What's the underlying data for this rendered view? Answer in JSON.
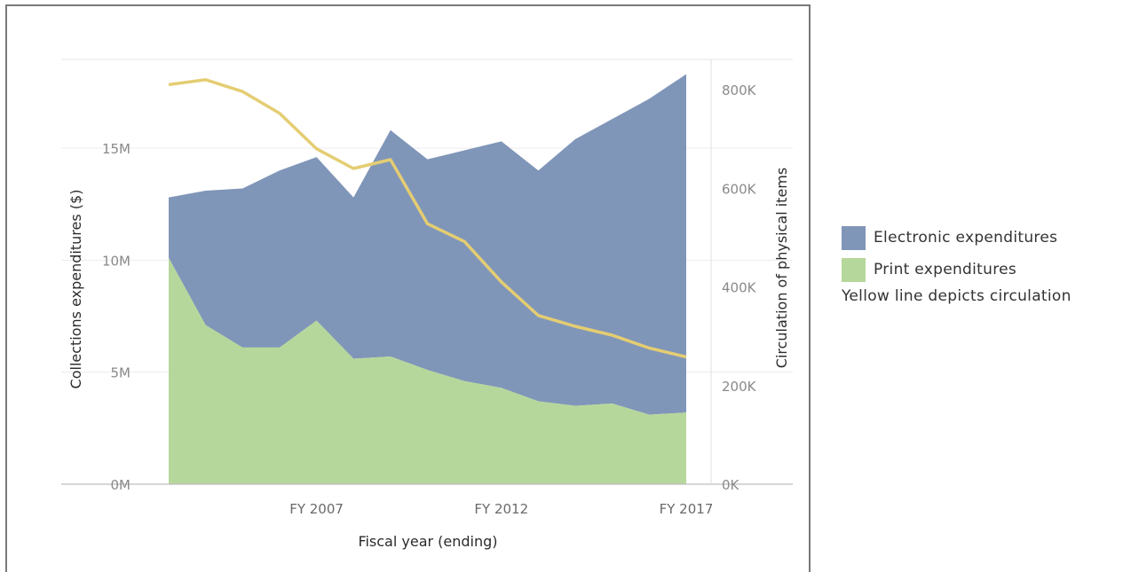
{
  "colors": {
    "electronic": "#8096b8",
    "print": "#b6d79b",
    "circulation": "#e4cd72"
  },
  "chart_data": {
    "type": "area",
    "x": [
      "FY 2003",
      "FY 2004",
      "FY 2005",
      "FY 2006",
      "FY 2007",
      "FY 2008",
      "FY 2009",
      "FY 2010",
      "FY 2011",
      "FY 2012",
      "FY 2013",
      "FY 2014",
      "FY 2015",
      "FY 2016",
      "FY 2017"
    ],
    "x_tick_labels": [
      "FY 2007",
      "FY 2012",
      "FY 2017"
    ],
    "xlabel": "Fiscal year (ending)",
    "ylabel_left": "Collections expenditures ($)",
    "ylabel_right": "Circulation of physical items",
    "yticks_left": [
      "0M",
      "5M",
      "10M",
      "15M"
    ],
    "yticks_right": [
      "0K",
      "200K",
      "400K",
      "600K",
      "800K"
    ],
    "ylim_left": [
      0,
      19000000
    ],
    "ylim_right": [
      0,
      864000
    ],
    "series": [
      {
        "name": "Electronic expenditures",
        "role": "stacked-area-top",
        "total_values": [
          12800000,
          13100000,
          13200000,
          14000000,
          14600000,
          12800000,
          15800000,
          14500000,
          14900000,
          15300000,
          14000000,
          15400000,
          16300000,
          17200000,
          18300000
        ]
      },
      {
        "name": "Print expenditures",
        "role": "stacked-area-bottom",
        "values": [
          10100000,
          7100000,
          6100000,
          6100000,
          7300000,
          5600000,
          5700000,
          5100000,
          4600000,
          4300000,
          3700000,
          3500000,
          3600000,
          3100000,
          3200000
        ]
      },
      {
        "name": "Circulation",
        "role": "line-right-axis",
        "values": [
          810000,
          820000,
          796000,
          752000,
          680000,
          640000,
          658000,
          528000,
          492000,
          410000,
          342000,
          320000,
          302000,
          276000,
          258000
        ]
      }
    ],
    "legend_position": "right",
    "grid": "horizontal"
  },
  "legend": {
    "items": [
      "Electronic expenditures",
      "Print expenditures"
    ],
    "note": "Yellow line depicts circulation"
  }
}
